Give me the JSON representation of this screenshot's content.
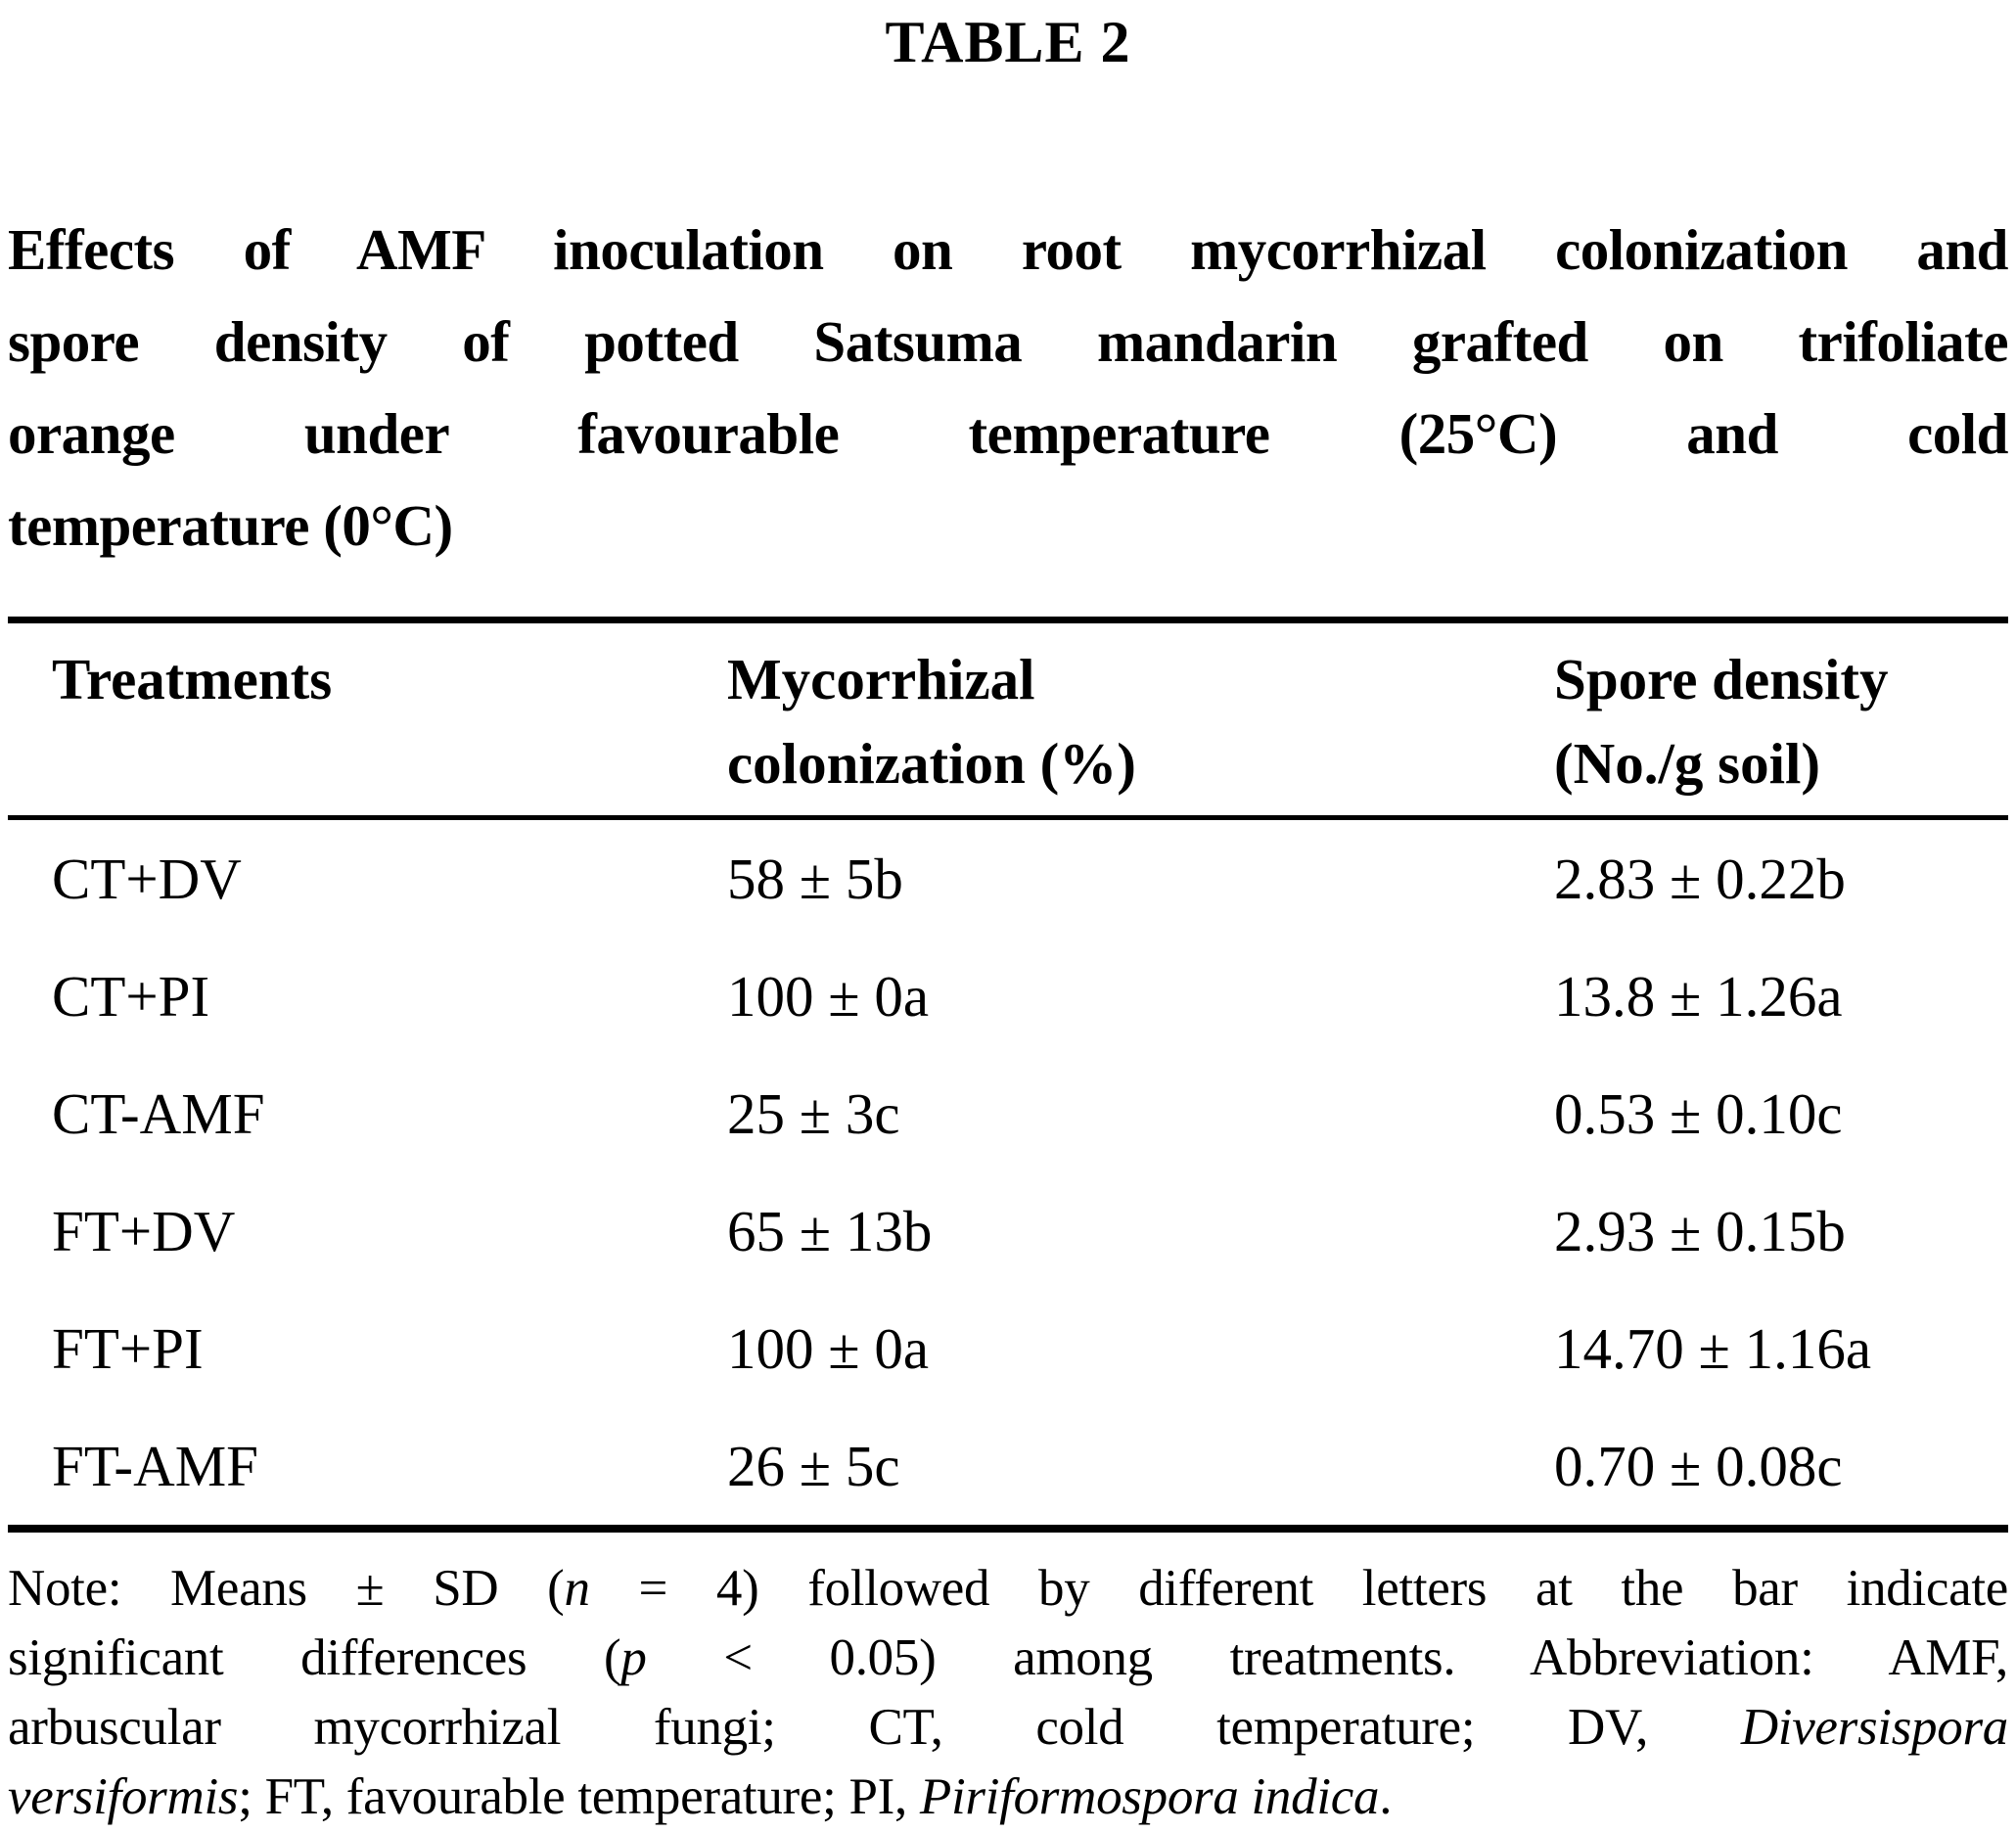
{
  "colors": {
    "text": "#000000",
    "background": "#ffffff"
  },
  "page": {
    "table_label": "TABLE 2",
    "caption_lines": [
      "Effects of AMF inoculation on root mycorrhizal colonization and",
      "spore density of potted Satsuma mandarin grafted on trifoliate",
      "orange under favourable temperature (25°C) and cold",
      "temperature (0°C)"
    ]
  },
  "table": {
    "headers": {
      "col1": {
        "line1": "Treatments",
        "line2": ""
      },
      "col2": {
        "line1": "Mycorrhizal",
        "line2": "colonization (%)"
      },
      "col3": {
        "line1": "Spore density",
        "line2": "(No./g soil)"
      }
    },
    "rows": [
      {
        "treatment": "CT+DV",
        "colonization": "58 ± 5b",
        "spore_density": "2.83 ± 0.22b"
      },
      {
        "treatment": "CT+PI",
        "colonization": "100 ± 0a",
        "spore_density": "13.8 ± 1.26a"
      },
      {
        "treatment": "CT-AMF",
        "colonization": "25 ± 3c",
        "spore_density": "0.53 ± 0.10c"
      },
      {
        "treatment": "FT+DV",
        "colonization": "65 ± 13b",
        "spore_density": "2.93 ± 0.15b"
      },
      {
        "treatment": "FT+PI",
        "colonization": "100 ± 0a",
        "spore_density": "14.70 ± 1.16a"
      },
      {
        "treatment": "FT-AMF",
        "colonization": "26 ± 5c",
        "spore_density": "0.70 ± 0.08c"
      }
    ]
  },
  "note": {
    "lines": [
      {
        "segments": [
          {
            "t": "Note: Means ± SD (",
            "i": false
          },
          {
            "t": "n",
            "i": true
          },
          {
            "t": " = 4) followed by different letters at the bar indicate",
            "i": false
          }
        ]
      },
      {
        "segments": [
          {
            "t": "significant differences (",
            "i": false
          },
          {
            "t": "p",
            "i": true
          },
          {
            "t": " < 0.05) among treatments. Abbreviation: AMF,",
            "i": false
          }
        ]
      },
      {
        "segments": [
          {
            "t": "arbuscular mycorrhizal fungi; CT, cold temperature; DV, ",
            "i": false
          },
          {
            "t": "Diversispora",
            "i": true
          }
        ]
      },
      {
        "segments": [
          {
            "t": "versiformis",
            "i": true
          },
          {
            "t": "; FT, favourable temperature; PI, ",
            "i": false
          },
          {
            "t": "Piriformospora indica",
            "i": true
          },
          {
            "t": ".",
            "i": false
          }
        ]
      }
    ]
  },
  "chart_data": {
    "type": "table",
    "title": "TABLE 2",
    "columns": [
      "Treatments",
      "Mycorrhizal colonization (%)",
      "Spore density (No./g soil)"
    ],
    "rows": [
      [
        "CT+DV",
        "58 ± 5b",
        "2.83 ± 0.22b"
      ],
      [
        "CT+PI",
        "100 ± 0a",
        "13.8 ± 1.26a"
      ],
      [
        "CT-AMF",
        "25 ± 3c",
        "0.53 ± 0.10c"
      ],
      [
        "FT+DV",
        "65 ± 13b",
        "2.93 ± 0.15b"
      ],
      [
        "FT+PI",
        "100 ± 0a",
        "14.70 ± 1.16a"
      ],
      [
        "FT-AMF",
        "26 ± 5c",
        "0.70 ± 0.08c"
      ]
    ]
  }
}
